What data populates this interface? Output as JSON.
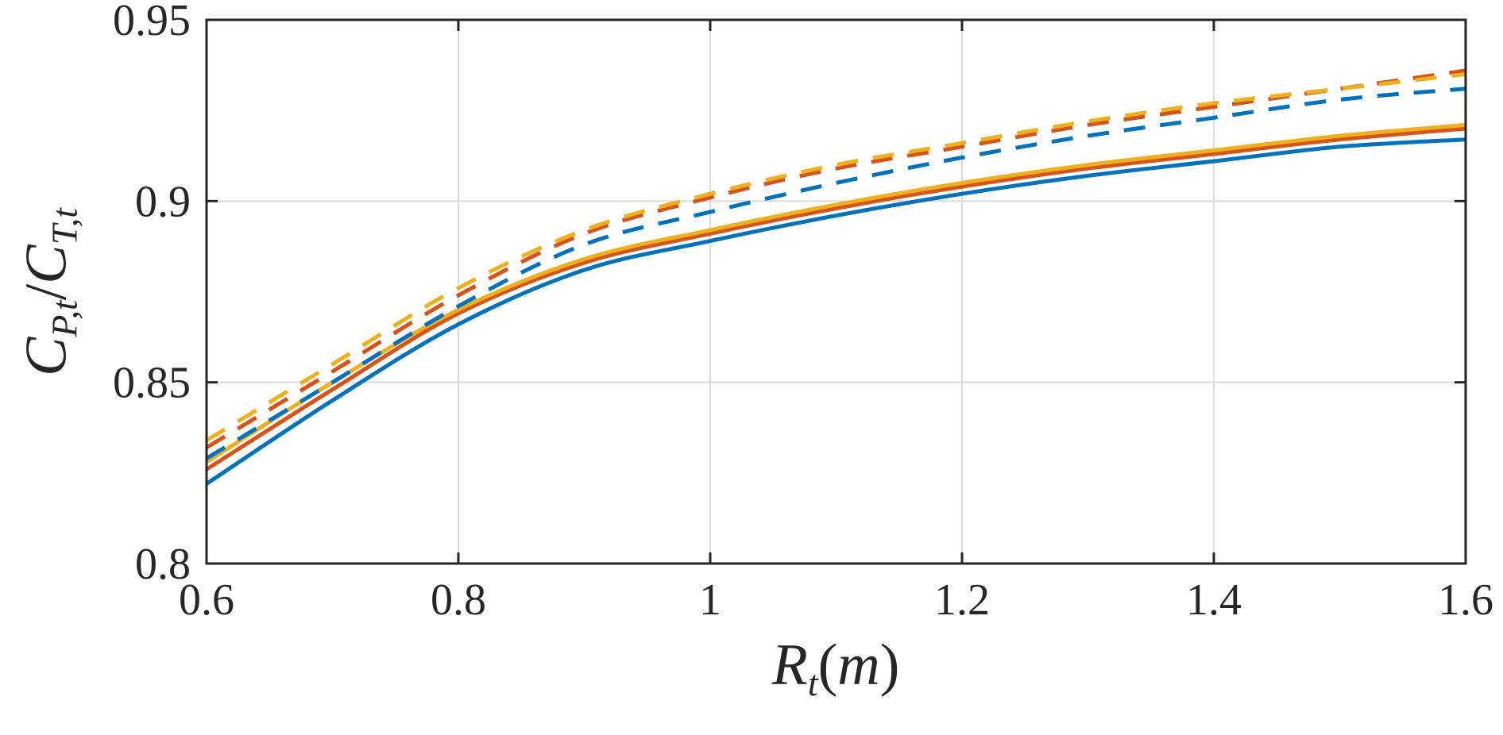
{
  "chart_data": {
    "type": "line",
    "title": "",
    "xlabel": "R_t(m)",
    "ylabel": "C_{P,t}/C_{T,t}",
    "xlabel_parts": [
      {
        "text": "R",
        "italic": true
      },
      {
        "text": "t",
        "sub": true
      },
      {
        "text": "(",
        "italic": false
      },
      {
        "text": "m",
        "italic": true
      },
      {
        "text": ")",
        "italic": false
      }
    ],
    "ylabel_parts": [
      {
        "text": "C",
        "italic": true
      },
      {
        "text": "P,t",
        "sub": true
      },
      {
        "text": "/",
        "italic": false
      },
      {
        "text": "C",
        "italic": true
      },
      {
        "text": "T,t",
        "sub": true
      }
    ],
    "xlim": [
      0.6,
      1.6
    ],
    "ylim": [
      0.8,
      0.95
    ],
    "xticks": [
      0.6,
      0.8,
      1.0,
      1.2,
      1.4,
      1.6
    ],
    "xtick_labels": [
      "0.6",
      "0.8",
      "1",
      "1.2",
      "1.4",
      "1.6"
    ],
    "yticks": [
      0.8,
      0.85,
      0.9,
      0.95
    ],
    "ytick_labels": [
      "0.8",
      "0.85",
      "0.9",
      "0.95"
    ],
    "grid": true,
    "legend": "none",
    "background_color": "#FFFFFF",
    "axis_color": "#262626",
    "grid_color": "#DBDBDB",
    "line_width": 5,
    "x": [
      0.6,
      0.7,
      0.8,
      0.9,
      1.0,
      1.1,
      1.2,
      1.3,
      1.4,
      1.5,
      1.6
    ],
    "series": [
      {
        "name": "solid-blue",
        "color": "#0072BD",
        "style": "solid",
        "values": [
          0.822,
          0.845,
          0.866,
          0.881,
          0.889,
          0.896,
          0.902,
          0.907,
          0.911,
          0.915,
          0.917
        ]
      },
      {
        "name": "solid-red",
        "color": "#D95319",
        "style": "solid",
        "values": [
          0.826,
          0.848,
          0.869,
          0.883,
          0.891,
          0.898,
          0.904,
          0.909,
          0.913,
          0.917,
          0.92
        ]
      },
      {
        "name": "solid-yellow",
        "color": "#EDB120",
        "style": "solid",
        "values": [
          0.828,
          0.85,
          0.87,
          0.884,
          0.892,
          0.899,
          0.905,
          0.91,
          0.914,
          0.918,
          0.921
        ]
      },
      {
        "name": "dashed-blue",
        "color": "#0072BD",
        "style": "dashed",
        "values": [
          0.829,
          0.85,
          0.871,
          0.888,
          0.897,
          0.905,
          0.912,
          0.918,
          0.923,
          0.928,
          0.931
        ]
      },
      {
        "name": "dashed-red",
        "color": "#D95319",
        "style": "dashed",
        "values": [
          0.832,
          0.853,
          0.874,
          0.891,
          0.901,
          0.909,
          0.915,
          0.921,
          0.926,
          0.931,
          0.936
        ]
      },
      {
        "name": "dashed-yellow",
        "color": "#EDB120",
        "style": "dashed",
        "values": [
          0.834,
          0.855,
          0.876,
          0.892,
          0.902,
          0.91,
          0.916,
          0.922,
          0.927,
          0.931,
          0.935
        ]
      }
    ]
  }
}
